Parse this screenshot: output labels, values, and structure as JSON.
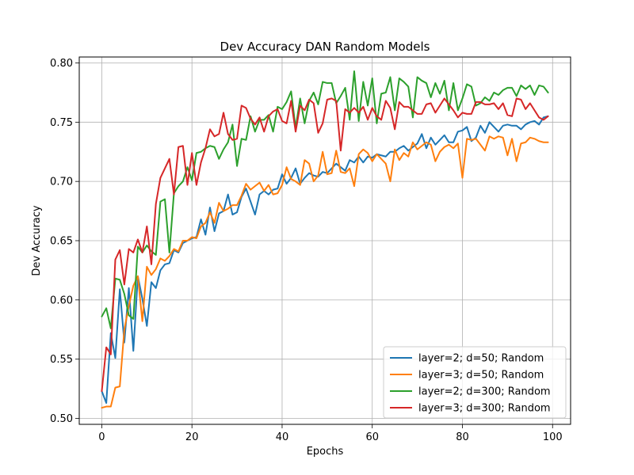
{
  "chart_data": {
    "type": "line",
    "title": "Dev Accuracy DAN Random Models",
    "xlabel": "Epochs",
    "ylabel": "Dev Accuracy",
    "xlim": [
      -5,
      104
    ],
    "ylim": [
      0.495,
      0.805
    ],
    "xticks": [
      0,
      20,
      40,
      60,
      80,
      100
    ],
    "yticks": [
      0.5,
      0.55,
      0.6,
      0.65,
      0.7,
      0.75,
      0.8
    ],
    "ytick_labels": [
      "0.50",
      "0.55",
      "0.60",
      "0.65",
      "0.70",
      "0.75",
      "0.80"
    ],
    "grid": true,
    "legend_position": "lower-right",
    "series": [
      {
        "name": "layer=2; d=50; Random",
        "color": "#1f77b4",
        "values": [
          0.523,
          0.513,
          0.572,
          0.551,
          0.609,
          0.564,
          0.61,
          0.557,
          0.62,
          0.601,
          0.578,
          0.615,
          0.61,
          0.625,
          0.63,
          0.631,
          0.642,
          0.64,
          0.648,
          0.65,
          0.652,
          0.653,
          0.668,
          0.655,
          0.678,
          0.658,
          0.673,
          0.675,
          0.689,
          0.672,
          0.674,
          0.687,
          0.694,
          0.683,
          0.672,
          0.689,
          0.692,
          0.689,
          0.693,
          0.694,
          0.706,
          0.698,
          0.703,
          0.711,
          0.698,
          0.703,
          0.707,
          0.705,
          0.704,
          0.708,
          0.707,
          0.711,
          0.715,
          0.712,
          0.709,
          0.718,
          0.716,
          0.721,
          0.716,
          0.721,
          0.72,
          0.723,
          0.722,
          0.721,
          0.725,
          0.725,
          0.728,
          0.73,
          0.726,
          0.729,
          0.732,
          0.74,
          0.728,
          0.737,
          0.731,
          0.735,
          0.739,
          0.733,
          0.733,
          0.742,
          0.743,
          0.746,
          0.734,
          0.737,
          0.747,
          0.741,
          0.75,
          0.746,
          0.742,
          0.747,
          0.748,
          0.747,
          0.747,
          0.744,
          0.748,
          0.75,
          0.751,
          0.748,
          0.754,
          0.755
        ]
      },
      {
        "name": "layer=3; d=50; Random",
        "color": "#ff7f0e",
        "values": [
          0.509,
          0.51,
          0.51,
          0.526,
          0.527,
          0.575,
          0.595,
          0.612,
          0.62,
          0.582,
          0.628,
          0.621,
          0.626,
          0.635,
          0.633,
          0.637,
          0.643,
          0.641,
          0.65,
          0.65,
          0.653,
          0.652,
          0.662,
          0.665,
          0.674,
          0.665,
          0.682,
          0.675,
          0.677,
          0.68,
          0.68,
          0.688,
          0.698,
          0.693,
          0.696,
          0.699,
          0.692,
          0.697,
          0.689,
          0.69,
          0.697,
          0.712,
          0.702,
          0.7,
          0.697,
          0.718,
          0.715,
          0.7,
          0.705,
          0.725,
          0.706,
          0.707,
          0.726,
          0.708,
          0.707,
          0.711,
          0.696,
          0.723,
          0.727,
          0.724,
          0.717,
          0.723,
          0.719,
          0.715,
          0.7,
          0.727,
          0.718,
          0.724,
          0.721,
          0.733,
          0.727,
          0.73,
          0.733,
          0.731,
          0.717,
          0.725,
          0.729,
          0.731,
          0.728,
          0.732,
          0.703,
          0.736,
          0.735,
          0.736,
          0.731,
          0.726,
          0.738,
          0.736,
          0.738,
          0.737,
          0.722,
          0.736,
          0.717,
          0.732,
          0.733,
          0.737,
          0.736,
          0.734,
          0.733,
          0.733
        ]
      },
      {
        "name": "layer=2; d=300; Random",
        "color": "#2ca02c",
        "values": [
          0.586,
          0.593,
          0.576,
          0.618,
          0.617,
          0.605,
          0.587,
          0.584,
          0.645,
          0.64,
          0.646,
          0.641,
          0.638,
          0.683,
          0.685,
          0.64,
          0.69,
          0.696,
          0.7,
          0.712,
          0.701,
          0.724,
          0.725,
          0.728,
          0.73,
          0.729,
          0.719,
          0.727,
          0.733,
          0.748,
          0.713,
          0.736,
          0.735,
          0.755,
          0.742,
          0.752,
          0.752,
          0.756,
          0.742,
          0.763,
          0.761,
          0.767,
          0.776,
          0.745,
          0.77,
          0.749,
          0.768,
          0.775,
          0.765,
          0.784,
          0.783,
          0.783,
          0.766,
          0.772,
          0.779,
          0.752,
          0.793,
          0.751,
          0.784,
          0.764,
          0.787,
          0.749,
          0.774,
          0.775,
          0.788,
          0.76,
          0.787,
          0.784,
          0.78,
          0.754,
          0.788,
          0.785,
          0.783,
          0.771,
          0.783,
          0.774,
          0.785,
          0.76,
          0.783,
          0.76,
          0.77,
          0.782,
          0.78,
          0.764,
          0.766,
          0.771,
          0.768,
          0.775,
          0.773,
          0.777,
          0.779,
          0.779,
          0.772,
          0.781,
          0.778,
          0.781,
          0.773,
          0.781,
          0.78,
          0.775
        ]
      },
      {
        "name": "layer=3; d=300; Random",
        "color": "#d62728",
        "values": [
          0.523,
          0.56,
          0.554,
          0.634,
          0.642,
          0.613,
          0.643,
          0.64,
          0.651,
          0.64,
          0.662,
          0.63,
          0.681,
          0.703,
          0.711,
          0.719,
          0.689,
          0.729,
          0.73,
          0.697,
          0.724,
          0.697,
          0.716,
          0.728,
          0.744,
          0.738,
          0.74,
          0.758,
          0.74,
          0.735,
          0.736,
          0.764,
          0.762,
          0.753,
          0.748,
          0.754,
          0.742,
          0.755,
          0.759,
          0.761,
          0.751,
          0.749,
          0.768,
          0.742,
          0.764,
          0.76,
          0.769,
          0.766,
          0.741,
          0.749,
          0.769,
          0.77,
          0.768,
          0.726,
          0.761,
          0.758,
          0.762,
          0.758,
          0.763,
          0.752,
          0.762,
          0.755,
          0.752,
          0.768,
          0.762,
          0.744,
          0.767,
          0.763,
          0.763,
          0.76,
          0.757,
          0.757,
          0.765,
          0.766,
          0.758,
          0.764,
          0.77,
          0.765,
          0.76,
          0.754,
          0.758,
          0.757,
          0.757,
          0.767,
          0.767,
          0.765,
          0.765,
          0.766,
          0.761,
          0.766,
          0.756,
          0.755,
          0.77,
          0.769,
          0.761,
          0.766,
          0.76,
          0.754,
          0.752,
          0.755
        ]
      }
    ]
  }
}
